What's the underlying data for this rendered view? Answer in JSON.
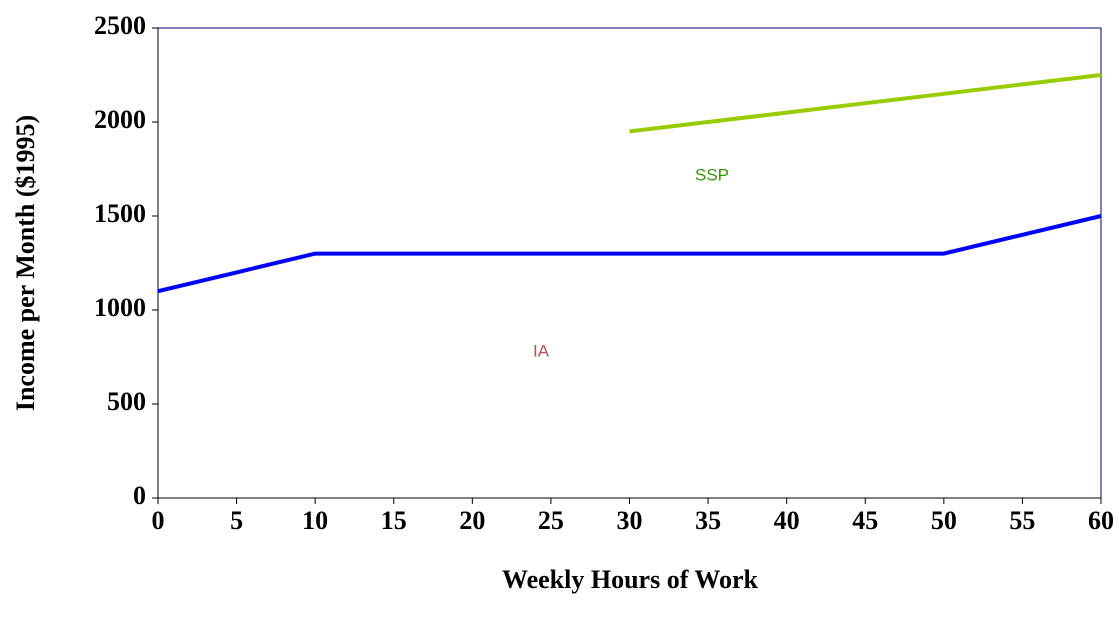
{
  "chart_data": {
    "type": "line",
    "x_label": "Weekly Hours of Work",
    "y_label": "Income per Month ($1995)",
    "x": [
      0,
      5,
      10,
      15,
      20,
      25,
      30,
      35,
      40,
      45,
      50,
      55,
      60
    ],
    "series": [
      {
        "name": "IA",
        "color": "#0000ff",
        "label_color": "#c0504d",
        "values": [
          1100,
          1200,
          1300,
          1300,
          1300,
          1300,
          1300,
          1300,
          1300,
          1300,
          1300,
          1400,
          1500
        ]
      },
      {
        "name": "SSP",
        "color": "#99cc00",
        "label_color": "#339900",
        "values": [
          null,
          null,
          null,
          null,
          null,
          null,
          1950,
          2000,
          2050,
          2100,
          2150,
          2200,
          2250
        ]
      }
    ],
    "xlim": [
      0,
      60
    ],
    "xticks": [
      0,
      5,
      10,
      15,
      20,
      25,
      30,
      35,
      40,
      45,
      50,
      55,
      60
    ],
    "ylim": [
      0,
      2500
    ],
    "yticks": [
      0,
      500,
      1000,
      1500,
      2000,
      2500
    ]
  }
}
